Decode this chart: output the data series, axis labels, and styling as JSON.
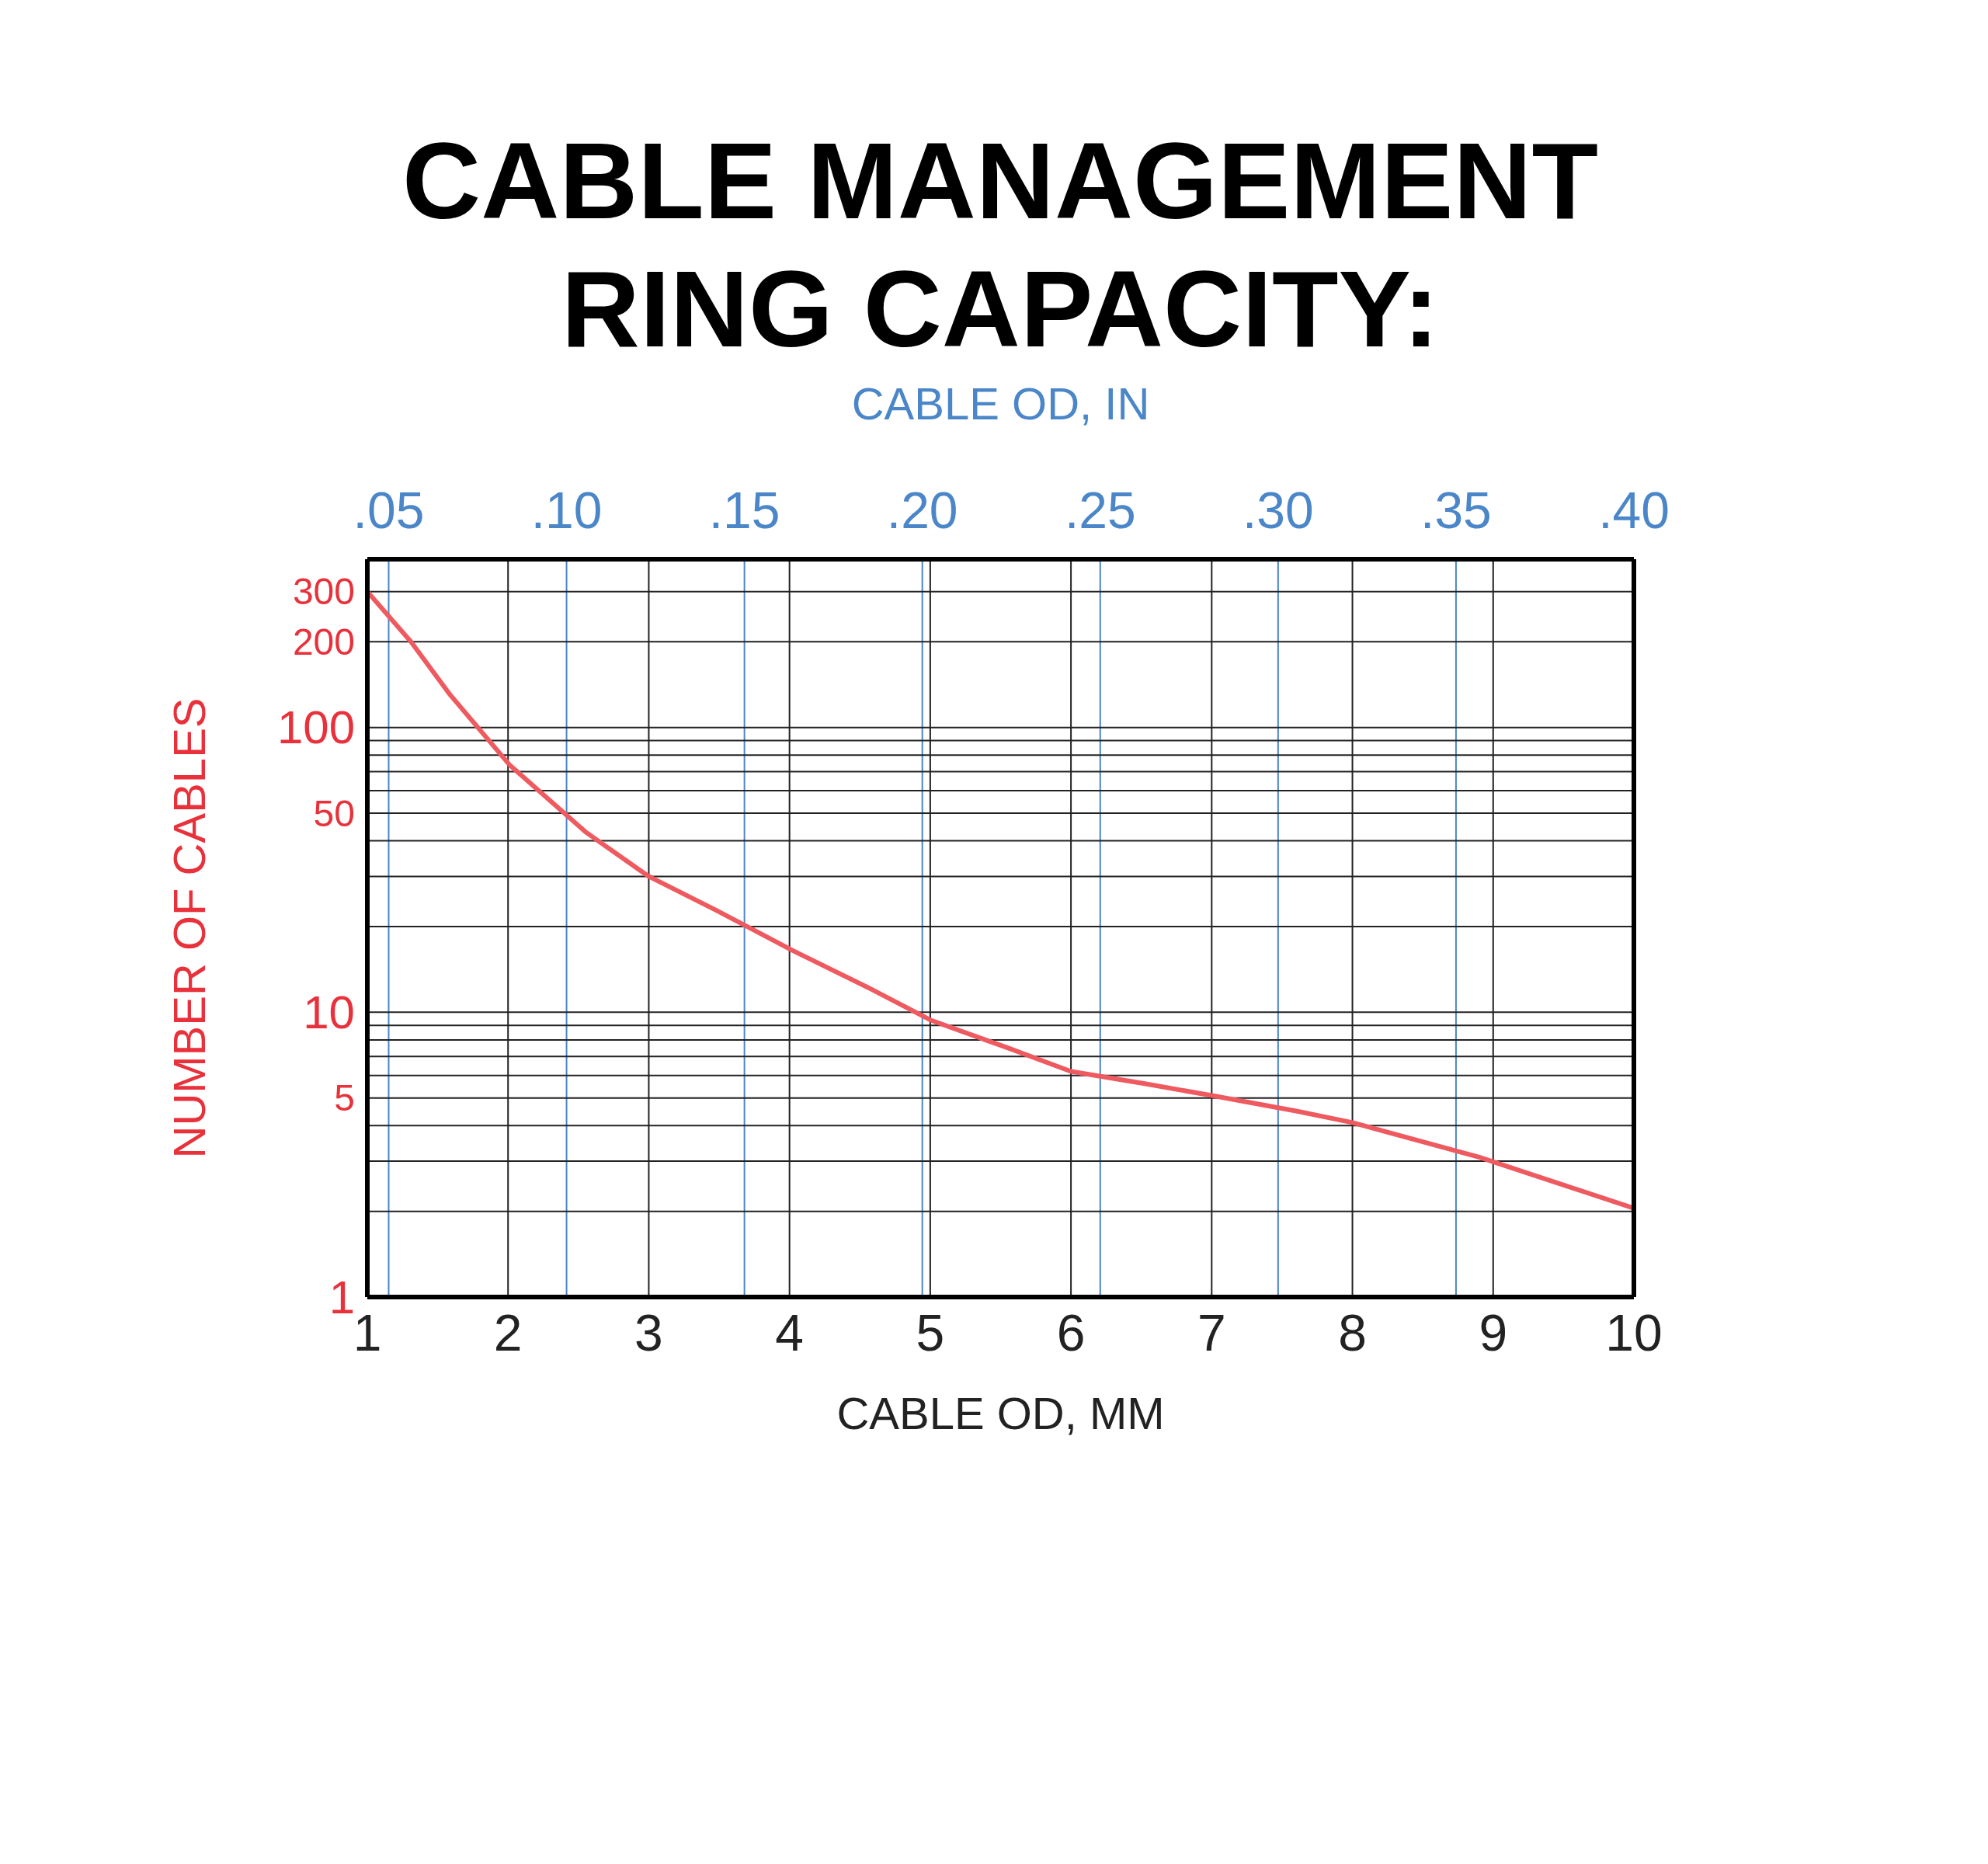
{
  "chart_data": {
    "type": "line",
    "title": "CABLE MANAGEMENT RING CAPACITY:",
    "xlabel": "CABLE OD, MM",
    "x2label": "CABLE OD, IN",
    "ylabel": "NUMBER OF CABLES",
    "x": [
      1,
      1.31,
      1.59,
      2.01,
      2.55,
      3.0,
      3.48,
      4.02,
      4.56,
      5.0,
      5.55,
      6.0,
      6.54,
      7.0,
      7.6,
      8.0,
      8.9,
      10
    ],
    "series": [
      {
        "color": "#ee5a5f",
        "values": [
          300,
          200,
          130,
          74,
          43,
          30,
          22.8,
          16.5,
          12.2,
          9.4,
          7.5,
          6.2,
          5.6,
          5.1,
          4.5,
          4.1,
          3.1,
          2.05
        ]
      }
    ],
    "log": "y",
    "grid": true,
    "marker": "none",
    "line_style": "solid",
    "xlim": [
      1,
      10
    ],
    "xticks": [
      1,
      2,
      3,
      4,
      5,
      6,
      7,
      8,
      9,
      10
    ],
    "x2lim": [
      0.044,
      0.4
    ],
    "x2ticks": [
      {
        "value": 0.05,
        "label": ".05"
      },
      {
        "value": 0.1,
        "label": ".10"
      },
      {
        "value": 0.15,
        "label": ".15"
      },
      {
        "value": 0.2,
        "label": ".20"
      },
      {
        "value": 0.25,
        "label": ".25"
      },
      {
        "value": 0.3,
        "label": ".30"
      },
      {
        "value": 0.35,
        "label": ".35"
      },
      {
        "value": 0.4,
        "label": ".40"
      }
    ],
    "ylim": [
      1,
      390
    ],
    "yticks": [
      1,
      {
        "value": 2,
        "label": null
      },
      {
        "value": 3,
        "label": null
      },
      {
        "value": 4,
        "label": null
      },
      5,
      {
        "value": 6,
        "label": null
      },
      {
        "value": 7,
        "label": null
      },
      {
        "value": 8,
        "label": null
      },
      {
        "value": 9,
        "label": null
      },
      10,
      {
        "value": 20,
        "label": null
      },
      {
        "value": 30,
        "label": null
      },
      {
        "value": 40,
        "label": null
      },
      50,
      {
        "value": 60,
        "label": null
      },
      {
        "value": 70,
        "label": null
      },
      {
        "value": 80,
        "label": null
      },
      {
        "value": 90,
        "label": null
      },
      100,
      200,
      300
    ]
  }
}
